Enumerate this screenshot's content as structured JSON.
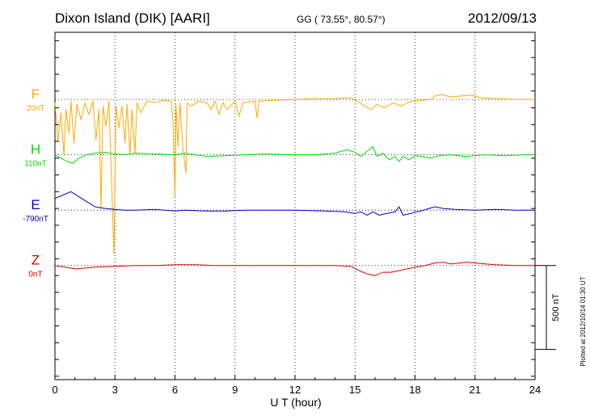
{
  "header": {
    "station": "Dixon Island (DIK)  [AARI]",
    "coords": "GG ( 73.55°,  80.57°)",
    "date": "2012/09/13"
  },
  "side_note": "Plotted at 2012/10/14 01:30 UT",
  "chart_data": {
    "type": "line",
    "xlabel": "U T (hour)",
    "xlim": [
      0,
      24
    ],
    "x_ticks": [
      0,
      3,
      6,
      9,
      12,
      15,
      18,
      21,
      24
    ],
    "x_tick_labels": [
      "0",
      "3",
      "6",
      "9",
      "12",
      "15",
      "18",
      "21",
      "24"
    ],
    "y_unit": "nT",
    "ylim_nT": [
      -1670,
      400
    ],
    "scale_bar": {
      "value_nT": 500,
      "label": "500 nT"
    },
    "grid": true,
    "series": [
      {
        "name": "F",
        "baseline_label": "20nT",
        "offset_nT": 0,
        "color": "#ffaa00",
        "points": [
          [
            0,
            -20
          ],
          [
            0.15,
            -250
          ],
          [
            0.3,
            -80
          ],
          [
            0.45,
            -330
          ],
          [
            0.55,
            -60
          ],
          [
            0.7,
            -200
          ],
          [
            0.8,
            -10
          ],
          [
            0.95,
            -260
          ],
          [
            1.1,
            -30
          ],
          [
            1.3,
            -120
          ],
          [
            1.5,
            -20
          ],
          [
            1.7,
            -90
          ],
          [
            1.9,
            -10
          ],
          [
            2.05,
            -240
          ],
          [
            2.2,
            -60
          ],
          [
            2.3,
            -650
          ],
          [
            2.4,
            -40
          ],
          [
            2.55,
            -160
          ],
          [
            2.7,
            -10
          ],
          [
            2.85,
            -560
          ],
          [
            2.95,
            -920
          ],
          [
            3.05,
            -40
          ],
          [
            3.2,
            -170
          ],
          [
            3.35,
            -40
          ],
          [
            3.5,
            -260
          ],
          [
            3.6,
            -30
          ],
          [
            3.75,
            -330
          ],
          [
            3.85,
            -60
          ],
          [
            4.0,
            -320
          ],
          [
            4.1,
            -20
          ],
          [
            4.3,
            -80
          ],
          [
            4.6,
            -10
          ],
          [
            5.0,
            -20
          ],
          [
            5.4,
            -5
          ],
          [
            5.8,
            -10
          ],
          [
            5.9,
            -120
          ],
          [
            6.0,
            -580
          ],
          [
            6.05,
            -30
          ],
          [
            6.15,
            -280
          ],
          [
            6.25,
            -20
          ],
          [
            6.4,
            -300
          ],
          [
            6.55,
            -440
          ],
          [
            6.6,
            -20
          ],
          [
            6.8,
            -40
          ],
          [
            7.2,
            -10
          ],
          [
            7.6,
            -20
          ],
          [
            7.8,
            -60
          ],
          [
            8.0,
            -10
          ],
          [
            8.2,
            -90
          ],
          [
            8.4,
            -20
          ],
          [
            8.6,
            -60
          ],
          [
            9.0,
            -10
          ],
          [
            9.2,
            -100
          ],
          [
            9.4,
            -20
          ],
          [
            10.0,
            -10
          ],
          [
            10.1,
            -110
          ],
          [
            10.2,
            -10
          ],
          [
            11.0,
            -5
          ],
          [
            12.0,
            0
          ],
          [
            13.0,
            5
          ],
          [
            14.0,
            5
          ],
          [
            14.8,
            10
          ],
          [
            15.1,
            -10
          ],
          [
            15.5,
            -40
          ],
          [
            15.8,
            -60
          ],
          [
            16.1,
            -30
          ],
          [
            16.5,
            -50
          ],
          [
            16.9,
            -20
          ],
          [
            17.3,
            -40
          ],
          [
            17.7,
            -15
          ],
          [
            18.0,
            -10
          ],
          [
            18.4,
            -5
          ],
          [
            18.8,
            0
          ],
          [
            19.0,
            20
          ],
          [
            19.3,
            30
          ],
          [
            19.8,
            15
          ],
          [
            20.3,
            20
          ],
          [
            20.8,
            25
          ],
          [
            21.3,
            10
          ],
          [
            22.0,
            5
          ],
          [
            23.0,
            0
          ],
          [
            24.0,
            0
          ]
        ]
      },
      {
        "name": "H",
        "baseline_label": "110nT",
        "offset_nT": -330,
        "color": "#00dd00",
        "points": [
          [
            0,
            0
          ],
          [
            0.3,
            -20
          ],
          [
            0.6,
            -40
          ],
          [
            0.9,
            -50
          ],
          [
            1.2,
            -20
          ],
          [
            1.6,
            0
          ],
          [
            2.0,
            10
          ],
          [
            2.5,
            15
          ],
          [
            3.0,
            5
          ],
          [
            3.5,
            0
          ],
          [
            4.0,
            10
          ],
          [
            5.0,
            5
          ],
          [
            6.0,
            0
          ],
          [
            6.5,
            10
          ],
          [
            7.0,
            0
          ],
          [
            7.6,
            -10
          ],
          [
            8.5,
            -5
          ],
          [
            9.5,
            0
          ],
          [
            10.5,
            5
          ],
          [
            12.0,
            0
          ],
          [
            13.0,
            0
          ],
          [
            14.0,
            10
          ],
          [
            14.6,
            30
          ],
          [
            15.0,
            15
          ],
          [
            15.3,
            -10
          ],
          [
            15.6,
            20
          ],
          [
            15.9,
            50
          ],
          [
            16.1,
            -10
          ],
          [
            16.4,
            10
          ],
          [
            16.7,
            -30
          ],
          [
            17.0,
            -10
          ],
          [
            17.2,
            -40
          ],
          [
            17.4,
            -10
          ],
          [
            17.7,
            -30
          ],
          [
            18.0,
            -5
          ],
          [
            18.4,
            -10
          ],
          [
            18.8,
            -20
          ],
          [
            19.2,
            -5
          ],
          [
            19.8,
            0
          ],
          [
            20.5,
            -10
          ],
          [
            21.5,
            0
          ],
          [
            22.5,
            -5
          ],
          [
            23.5,
            0
          ],
          [
            24.0,
            0
          ]
        ]
      },
      {
        "name": "E",
        "baseline_label": "-790nT",
        "offset_nT": -660,
        "color": "#0000cc",
        "points": [
          [
            0,
            70
          ],
          [
            0.4,
            90
          ],
          [
            0.8,
            110
          ],
          [
            1.2,
            80
          ],
          [
            1.6,
            50
          ],
          [
            2.0,
            20
          ],
          [
            2.5,
            10
          ],
          [
            3.0,
            5
          ],
          [
            3.5,
            0
          ],
          [
            4.0,
            0
          ],
          [
            5.0,
            5
          ],
          [
            6.0,
            -5
          ],
          [
            6.5,
            0
          ],
          [
            7.5,
            -5
          ],
          [
            8.5,
            -5
          ],
          [
            9.5,
            0
          ],
          [
            10.5,
            0
          ],
          [
            12.0,
            0
          ],
          [
            13.5,
            -5
          ],
          [
            14.5,
            -10
          ],
          [
            15.0,
            -20
          ],
          [
            15.3,
            -10
          ],
          [
            15.6,
            -30
          ],
          [
            15.9,
            -10
          ],
          [
            16.2,
            -30
          ],
          [
            16.6,
            -20
          ],
          [
            17.0,
            -10
          ],
          [
            17.2,
            20
          ],
          [
            17.4,
            -30
          ],
          [
            17.8,
            -20
          ],
          [
            18.0,
            -10
          ],
          [
            18.3,
            -5
          ],
          [
            18.7,
            10
          ],
          [
            19.0,
            20
          ],
          [
            19.4,
            10
          ],
          [
            20.0,
            5
          ],
          [
            21.0,
            0
          ],
          [
            22.0,
            5
          ],
          [
            23.0,
            0
          ],
          [
            24.0,
            0
          ]
        ]
      },
      {
        "name": "Z",
        "baseline_label": "0nT",
        "offset_nT": -990,
        "color": "#dd0000",
        "points": [
          [
            0,
            0
          ],
          [
            0.5,
            -10
          ],
          [
            1.0,
            -20
          ],
          [
            1.5,
            -15
          ],
          [
            2.0,
            -10
          ],
          [
            3.0,
            -5
          ],
          [
            4.0,
            0
          ],
          [
            5.0,
            0
          ],
          [
            6.0,
            5
          ],
          [
            7.0,
            5
          ],
          [
            8.0,
            0
          ],
          [
            9.0,
            0
          ],
          [
            10.0,
            0
          ],
          [
            12.0,
            0
          ],
          [
            14.0,
            0
          ],
          [
            14.8,
            -5
          ],
          [
            15.2,
            -30
          ],
          [
            15.6,
            -50
          ],
          [
            16.0,
            -60
          ],
          [
            16.4,
            -40
          ],
          [
            16.8,
            -40
          ],
          [
            17.2,
            -30
          ],
          [
            17.6,
            -20
          ],
          [
            18.0,
            -10
          ],
          [
            18.5,
            0
          ],
          [
            19.0,
            15
          ],
          [
            19.4,
            20
          ],
          [
            19.8,
            10
          ],
          [
            20.2,
            15
          ],
          [
            20.6,
            20
          ],
          [
            21.0,
            15
          ],
          [
            21.5,
            10
          ],
          [
            22.0,
            5
          ],
          [
            23.0,
            0
          ],
          [
            24.0,
            0
          ]
        ]
      }
    ]
  }
}
